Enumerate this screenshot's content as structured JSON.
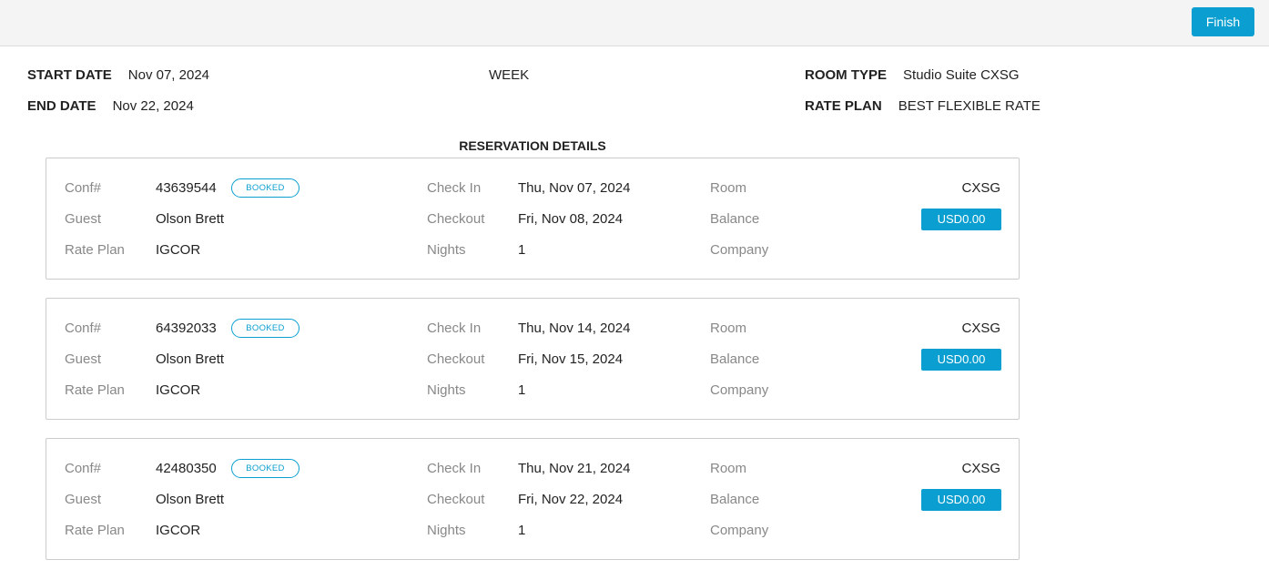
{
  "toolbar": {
    "finish_label": "Finish"
  },
  "header": {
    "start_date_label": "START DATE",
    "start_date": "Nov 07, 2024",
    "end_date_label": "END DATE",
    "end_date": "Nov 22, 2024",
    "period": "WEEK",
    "room_type_label": "ROOM TYPE",
    "room_type": "Studio Suite CXSG",
    "rate_plan_label": "RATE PLAN",
    "rate_plan": "BEST FLEXIBLE RATE"
  },
  "section_title": "RESERVATION DETAILS",
  "labels": {
    "conf": "Conf#",
    "guest": "Guest",
    "rate_plan": "Rate Plan",
    "check_in": "Check In",
    "checkout": "Checkout",
    "nights": "Nights",
    "room": "Room",
    "balance": "Balance",
    "company": "Company"
  },
  "colors": {
    "accent": "#0a9fd0"
  },
  "reservations": [
    {
      "conf": "43639544",
      "status": "BOOKED",
      "guest": "Olson Brett",
      "rate_plan": "IGCOR",
      "check_in": "Thu, Nov 07, 2024",
      "checkout": "Fri, Nov 08, 2024",
      "nights": "1",
      "room": "CXSG",
      "balance": "USD0.00",
      "company": ""
    },
    {
      "conf": "64392033",
      "status": "BOOKED",
      "guest": "Olson Brett",
      "rate_plan": "IGCOR",
      "check_in": "Thu, Nov 14, 2024",
      "checkout": "Fri, Nov 15, 2024",
      "nights": "1",
      "room": "CXSG",
      "balance": "USD0.00",
      "company": ""
    },
    {
      "conf": "42480350",
      "status": "BOOKED",
      "guest": "Olson Brett",
      "rate_plan": "IGCOR",
      "check_in": "Thu, Nov 21, 2024",
      "checkout": "Fri, Nov 22, 2024",
      "nights": "1",
      "room": "CXSG",
      "balance": "USD0.00",
      "company": ""
    }
  ]
}
